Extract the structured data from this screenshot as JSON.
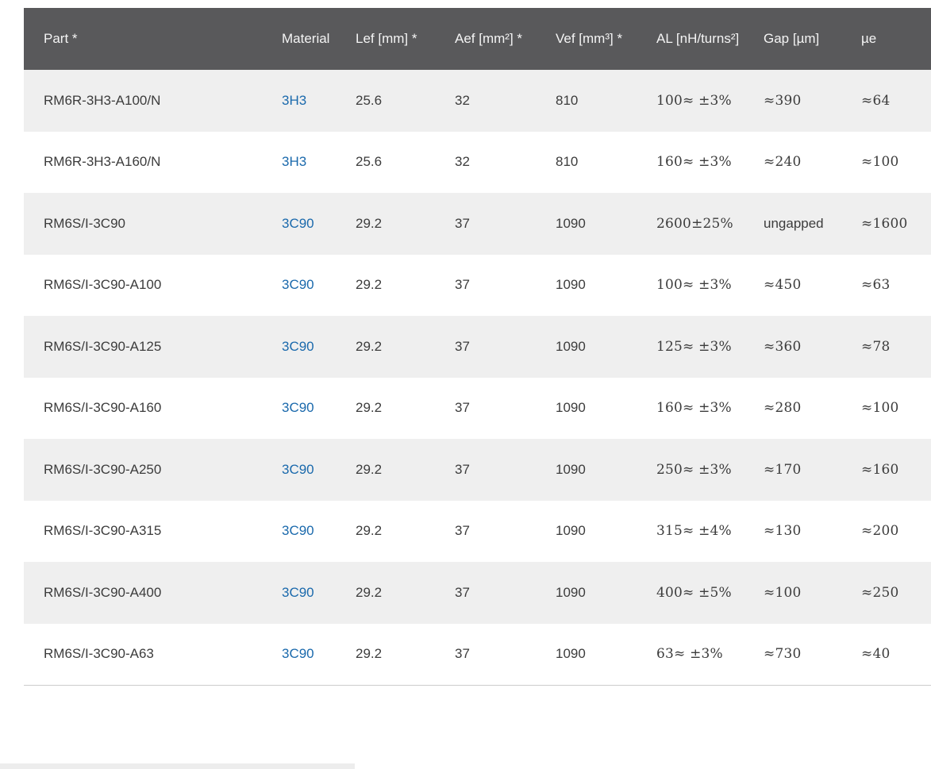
{
  "colors": {
    "header_background": "#59595b",
    "header_text": "#f4f4f4",
    "row_alt_background": "#efefef",
    "body_text": "#3c3c3c",
    "material_link": "#1a69ac",
    "table_bottom_border": "#cccccc",
    "bottom_strip": "#ededed"
  },
  "table": {
    "columns": [
      {
        "key": "part",
        "label": "Part *"
      },
      {
        "key": "material",
        "label": "Material"
      },
      {
        "key": "lef",
        "label": "Lef [mm] *"
      },
      {
        "key": "aef",
        "label": "Aef [mm²] *"
      },
      {
        "key": "vef",
        "label": "Vef [mm³] *"
      },
      {
        "key": "al",
        "label": "AL [nH/turns²]"
      },
      {
        "key": "gap",
        "label": "Gap [µm]"
      },
      {
        "key": "ue",
        "label": "µe"
      }
    ],
    "rows": [
      {
        "part": "RM6R-3H3-A100/N",
        "material": "3H3",
        "lef": "25.6",
        "aef": "32",
        "vef": "810",
        "al": "100≈ ±3%",
        "gap": "≈390",
        "ue": "≈64"
      },
      {
        "part": "RM6R-3H3-A160/N",
        "material": "3H3",
        "lef": "25.6",
        "aef": "32",
        "vef": "810",
        "al": "160≈ ±3%",
        "gap": "≈240",
        "ue": "≈100"
      },
      {
        "part": "RM6S/I-3C90",
        "material": "3C90",
        "lef": "29.2",
        "aef": "37",
        "vef": "1090",
        "al": "2600±25%",
        "gap": "ungapped",
        "ue": "≈1600"
      },
      {
        "part": "RM6S/I-3C90-A100",
        "material": "3C90",
        "lef": "29.2",
        "aef": "37",
        "vef": "1090",
        "al": "100≈ ±3%",
        "gap": "≈450",
        "ue": "≈63"
      },
      {
        "part": "RM6S/I-3C90-A125",
        "material": "3C90",
        "lef": "29.2",
        "aef": "37",
        "vef": "1090",
        "al": "125≈ ±3%",
        "gap": "≈360",
        "ue": "≈78"
      },
      {
        "part": "RM6S/I-3C90-A160",
        "material": "3C90",
        "lef": "29.2",
        "aef": "37",
        "vef": "1090",
        "al": "160≈ ±3%",
        "gap": "≈280",
        "ue": "≈100"
      },
      {
        "part": "RM6S/I-3C90-A250",
        "material": "3C90",
        "lef": "29.2",
        "aef": "37",
        "vef": "1090",
        "al": "250≈ ±3%",
        "gap": "≈170",
        "ue": "≈160"
      },
      {
        "part": "RM6S/I-3C90-A315",
        "material": "3C90",
        "lef": "29.2",
        "aef": "37",
        "vef": "1090",
        "al": "315≈ ±4%",
        "gap": "≈130",
        "ue": "≈200"
      },
      {
        "part": "RM6S/I-3C90-A400",
        "material": "3C90",
        "lef": "29.2",
        "aef": "37",
        "vef": "1090",
        "al": "400≈ ±5%",
        "gap": "≈100",
        "ue": "≈250"
      },
      {
        "part": "RM6S/I-3C90-A63",
        "material": "3C90",
        "lef": "29.2",
        "aef": "37",
        "vef": "1090",
        "al": "63≈ ±3%",
        "gap": "≈730",
        "ue": "≈40"
      }
    ]
  }
}
